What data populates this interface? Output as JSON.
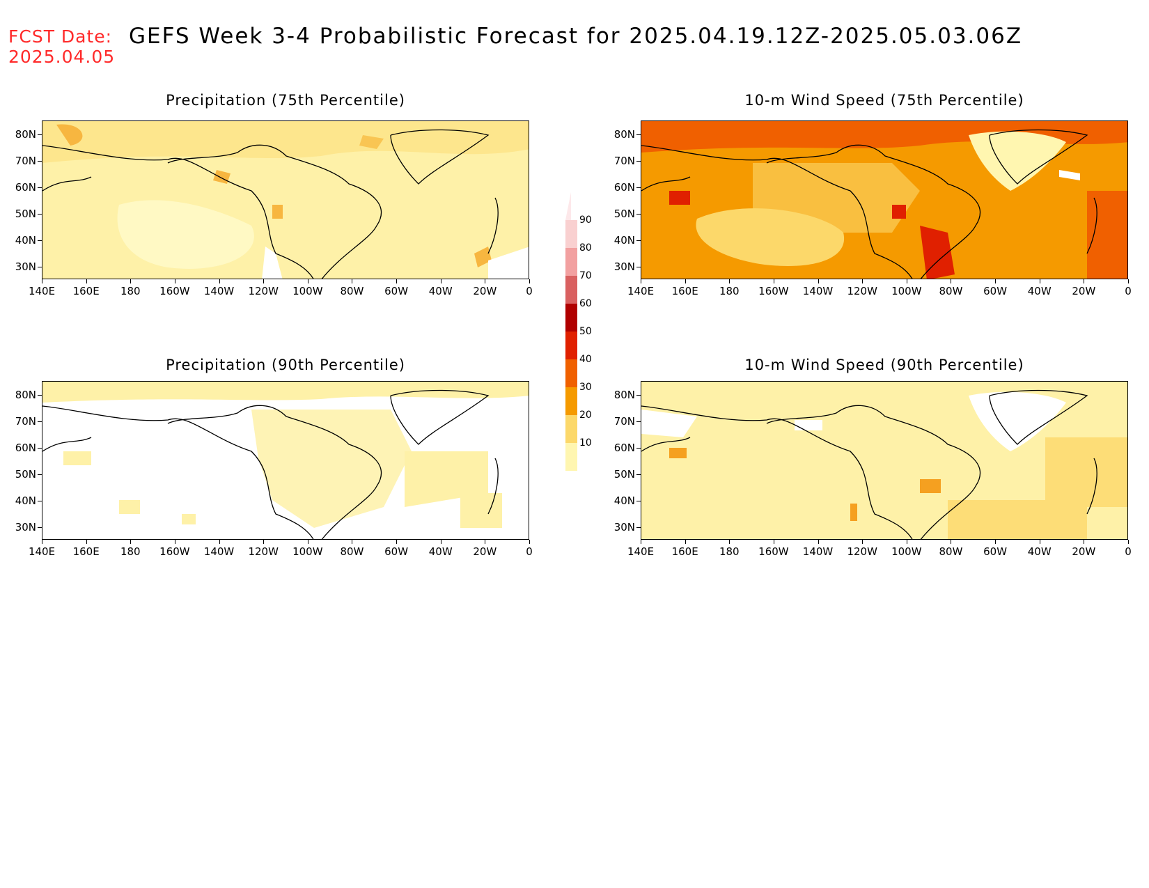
{
  "header": {
    "fcst_label": "FCST Date:",
    "fcst_date": "2025.04.05",
    "title": "GEFS Week 3-4 Probabilistic Forecast for 2025.04.19.12Z-2025.05.03.06Z"
  },
  "axes": {
    "lat_labels": [
      "80N",
      "70N",
      "60N",
      "50N",
      "40N",
      "30N"
    ],
    "lon_labels": [
      "140E",
      "160E",
      "180",
      "160W",
      "140W",
      "120W",
      "100W",
      "80W",
      "60W",
      "40W",
      "20W",
      "0"
    ]
  },
  "panels": [
    {
      "title": "Precipitation (75th Percentile)",
      "dominant_color": "#fef1a8"
    },
    {
      "title": "10-m Wind Speed (75th Percentile)",
      "dominant_color": "#f59a00"
    },
    {
      "title": "Precipitation (90th Percentile)",
      "dominant_color": "#ffffff"
    },
    {
      "title": "10-m Wind Speed (90th Percentile)",
      "dominant_color": "#fef1a8"
    }
  ],
  "colorbar": {
    "labels": [
      "90",
      "80",
      "70",
      "60",
      "50",
      "40",
      "30",
      "20",
      "10"
    ],
    "colors": [
      "#f9d0d0",
      "#f2a0a0",
      "#d96060",
      "#b00000",
      "#e02000",
      "#f06000",
      "#f59a00",
      "#fcd86a",
      "#fff6b0"
    ]
  }
}
